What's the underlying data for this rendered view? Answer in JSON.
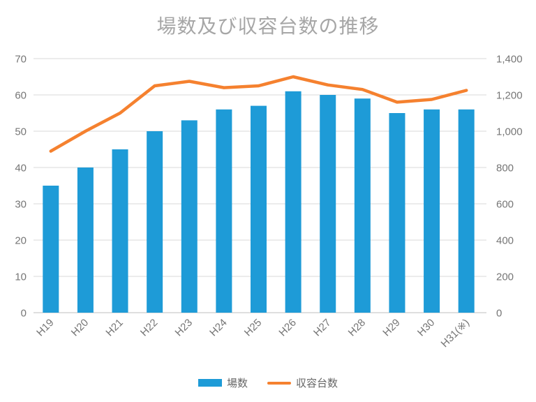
{
  "chart_data": {
    "type": "bar+line combo",
    "title": "場数及び収容台数の推移",
    "categories": [
      "H19",
      "H20",
      "H21",
      "H22",
      "H23",
      "H24",
      "H25",
      "H26",
      "H27",
      "H28",
      "H29",
      "H30",
      "H31(※)"
    ],
    "series": [
      {
        "name": "場数",
        "type": "bar",
        "axis": "left",
        "color": "#1e9bd7",
        "values": [
          35,
          40,
          45,
          50,
          53,
          56,
          57,
          61,
          60,
          59,
          55,
          56,
          56
        ]
      },
      {
        "name": "収容台数",
        "type": "line",
        "axis": "right",
        "color": "#f5812f",
        "values": [
          890,
          1000,
          1100,
          1250,
          1275,
          1240,
          1250,
          1300,
          1255,
          1230,
          1160,
          1175,
          1225
        ]
      }
    ],
    "left_axis": {
      "min": 0,
      "max": 70,
      "ticks": [
        "0",
        "10",
        "20",
        "30",
        "40",
        "50",
        "60",
        "70"
      ]
    },
    "right_axis": {
      "min": 0,
      "max": 1400,
      "ticks": [
        "0",
        "200",
        "400",
        "600",
        "800",
        "1,000",
        "1,200",
        "1,400"
      ]
    },
    "grid": true,
    "legend_position": "bottom",
    "colors": {
      "bar": "#1e9bd7",
      "line": "#f5812f",
      "title_text": "#a6a6a6",
      "axis_text": "#767676",
      "gridline": "#d9d9d9",
      "axis_line": "#bfbfbf",
      "background": "#ffffff"
    }
  }
}
